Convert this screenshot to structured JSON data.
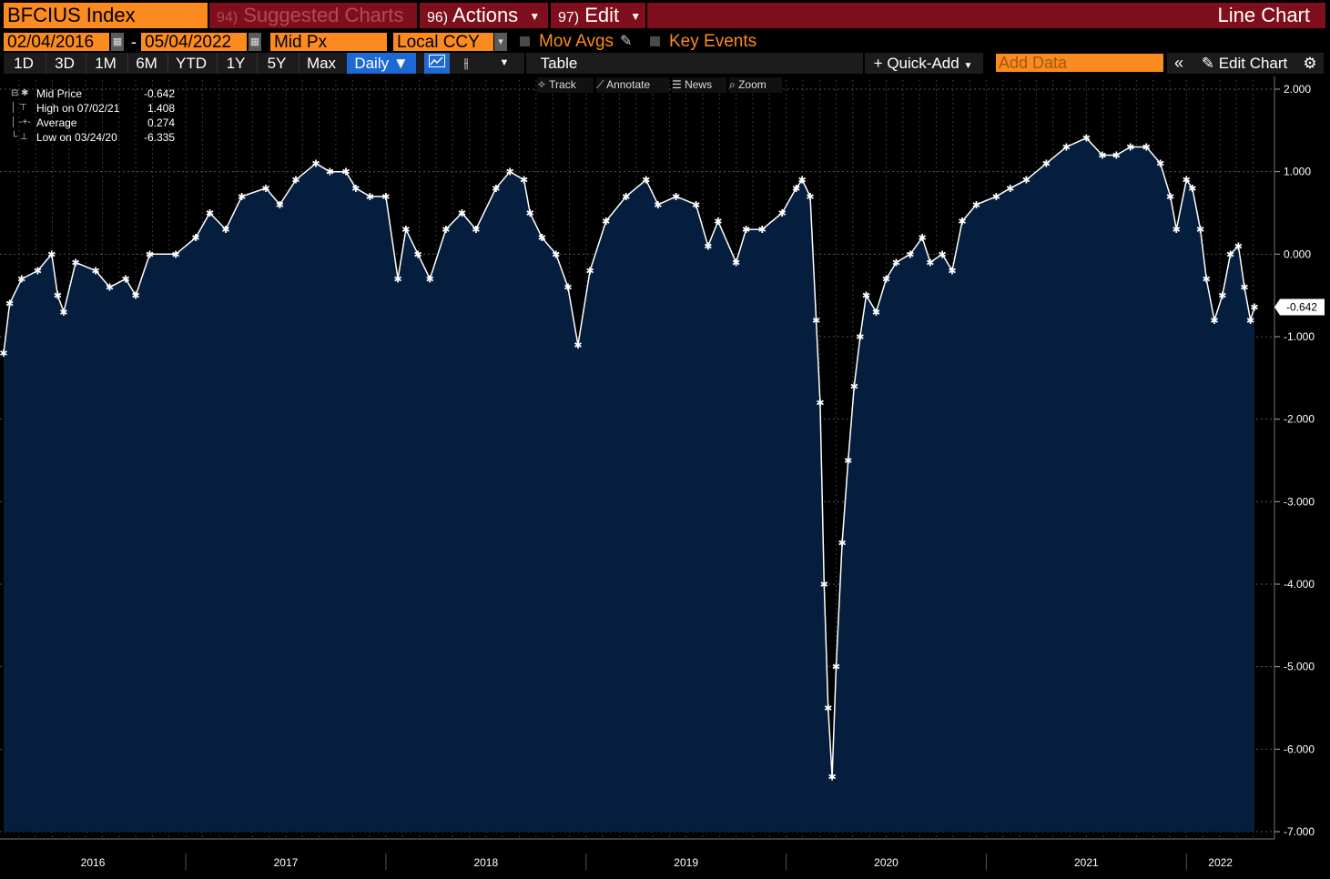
{
  "header": {
    "ticker": "BFCIUS Index",
    "tabs": [
      {
        "num": "94)",
        "label": "Suggested Charts"
      },
      {
        "num": "96)",
        "label": "Actions"
      },
      {
        "num": "97)",
        "label": "Edit"
      }
    ],
    "view_title": "Line Chart"
  },
  "controls": {
    "start_date": "02/04/2016",
    "end_date": "05/04/2022",
    "date_separator": "-",
    "field": "Mid Px",
    "currency": "Local CCY",
    "mov_avgs": "Mov Avgs",
    "key_events": "Key Events"
  },
  "periods": [
    "1D",
    "3D",
    "1M",
    "6M",
    "YTD",
    "1Y",
    "5Y",
    "Max"
  ],
  "frequency": "Daily",
  "table_label": "Table",
  "quick_add": "Quick-Add",
  "add_data_placeholder": "Add Data",
  "edit_chart": "Edit Chart",
  "chart_tools": [
    "Track",
    "Annotate",
    "News",
    "Zoom"
  ],
  "legend": {
    "mid_label": "Mid Price",
    "mid_value": "-0.642",
    "high_label": "High on 07/02/21",
    "high_value": "1.408",
    "avg_label": "Average",
    "avg_value": "0.274",
    "low_label": "Low on 03/24/20",
    "low_value": "-6.335"
  },
  "last_value_tag": "-0.642",
  "colors": {
    "accent": "#fb8b1e",
    "tab_bg": "#7f0f1c",
    "area_fill": "#051e3e",
    "line": "#ffffff",
    "button_blue": "#1e6ad4"
  },
  "chart_data": {
    "type": "area",
    "ylim": [
      -7,
      2
    ],
    "yticks": [
      "2.000",
      "1.000",
      "0.000",
      "-1.000",
      "-2.000",
      "-3.000",
      "-4.000",
      "-5.000",
      "-6.000",
      "-7.000"
    ],
    "xticks": [
      "2016",
      "2017",
      "2018",
      "2019",
      "2020",
      "2021",
      "2022"
    ],
    "xlim": [
      2016.09,
      2022.34
    ],
    "series": [
      {
        "values": [
          [
            2016.09,
            -1.2
          ],
          [
            2016.12,
            -0.6
          ],
          [
            2016.18,
            -0.3
          ],
          [
            2016.26,
            -0.2
          ],
          [
            2016.33,
            0.0
          ],
          [
            2016.36,
            -0.5
          ],
          [
            2016.39,
            -0.7
          ],
          [
            2016.45,
            -0.1
          ],
          [
            2016.55,
            -0.2
          ],
          [
            2016.62,
            -0.4
          ],
          [
            2016.7,
            -0.3
          ],
          [
            2016.75,
            -0.5
          ],
          [
            2016.82,
            0.0
          ],
          [
            2016.95,
            0.0
          ],
          [
            2017.05,
            0.2
          ],
          [
            2017.12,
            0.5
          ],
          [
            2017.2,
            0.3
          ],
          [
            2017.28,
            0.7
          ],
          [
            2017.4,
            0.8
          ],
          [
            2017.47,
            0.6
          ],
          [
            2017.55,
            0.9
          ],
          [
            2017.65,
            1.1
          ],
          [
            2017.72,
            1.0
          ],
          [
            2017.8,
            1.0
          ],
          [
            2017.85,
            0.8
          ],
          [
            2017.92,
            0.7
          ],
          [
            2018.0,
            0.7
          ],
          [
            2018.06,
            -0.3
          ],
          [
            2018.1,
            0.3
          ],
          [
            2018.16,
            0.0
          ],
          [
            2018.22,
            -0.3
          ],
          [
            2018.3,
            0.3
          ],
          [
            2018.38,
            0.5
          ],
          [
            2018.45,
            0.3
          ],
          [
            2018.55,
            0.8
          ],
          [
            2018.62,
            1.0
          ],
          [
            2018.69,
            0.9
          ],
          [
            2018.72,
            0.5
          ],
          [
            2018.78,
            0.2
          ],
          [
            2018.85,
            0.0
          ],
          [
            2018.91,
            -0.4
          ],
          [
            2018.96,
            -1.1
          ],
          [
            2019.02,
            -0.2
          ],
          [
            2019.1,
            0.4
          ],
          [
            2019.2,
            0.7
          ],
          [
            2019.3,
            0.9
          ],
          [
            2019.36,
            0.6
          ],
          [
            2019.45,
            0.7
          ],
          [
            2019.55,
            0.6
          ],
          [
            2019.61,
            0.1
          ],
          [
            2019.66,
            0.4
          ],
          [
            2019.75,
            -0.1
          ],
          [
            2019.8,
            0.3
          ],
          [
            2019.88,
            0.3
          ],
          [
            2019.98,
            0.5
          ],
          [
            2020.05,
            0.8
          ],
          [
            2020.08,
            0.9
          ],
          [
            2020.12,
            0.7
          ],
          [
            2020.15,
            -0.8
          ],
          [
            2020.17,
            -1.8
          ],
          [
            2020.19,
            -4.0
          ],
          [
            2020.21,
            -5.5
          ],
          [
            2020.23,
            -6.335
          ],
          [
            2020.25,
            -5.0
          ],
          [
            2020.28,
            -3.5
          ],
          [
            2020.31,
            -2.5
          ],
          [
            2020.34,
            -1.6
          ],
          [
            2020.37,
            -1.0
          ],
          [
            2020.4,
            -0.5
          ],
          [
            2020.45,
            -0.7
          ],
          [
            2020.5,
            -0.3
          ],
          [
            2020.55,
            -0.1
          ],
          [
            2020.62,
            0.0
          ],
          [
            2020.68,
            0.2
          ],
          [
            2020.72,
            -0.1
          ],
          [
            2020.78,
            0.0
          ],
          [
            2020.83,
            -0.2
          ],
          [
            2020.88,
            0.4
          ],
          [
            2020.95,
            0.6
          ],
          [
            2021.05,
            0.7
          ],
          [
            2021.12,
            0.8
          ],
          [
            2021.2,
            0.9
          ],
          [
            2021.3,
            1.1
          ],
          [
            2021.4,
            1.3
          ],
          [
            2021.5,
            1.408
          ],
          [
            2021.58,
            1.2
          ],
          [
            2021.65,
            1.2
          ],
          [
            2021.72,
            1.3
          ],
          [
            2021.8,
            1.3
          ],
          [
            2021.87,
            1.1
          ],
          [
            2021.92,
            0.7
          ],
          [
            2021.95,
            0.3
          ],
          [
            2022.0,
            0.9
          ],
          [
            2022.03,
            0.8
          ],
          [
            2022.07,
            0.3
          ],
          [
            2022.1,
            -0.3
          ],
          [
            2022.14,
            -0.8
          ],
          [
            2022.18,
            -0.5
          ],
          [
            2022.22,
            0.0
          ],
          [
            2022.26,
            0.1
          ],
          [
            2022.29,
            -0.4
          ],
          [
            2022.32,
            -0.8
          ],
          [
            2022.34,
            -0.642
          ]
        ]
      }
    ]
  }
}
